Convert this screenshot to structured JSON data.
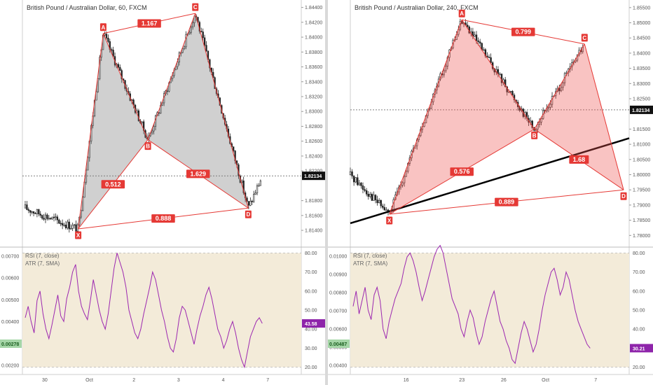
{
  "chart_data": [
    {
      "type": "candlestick",
      "title": "British Pound / Australian Dollar, 60, FXCM",
      "price_axis": {
        "ticks": [
          "1.84400",
          "1.84200",
          "1.84000",
          "1.83800",
          "1.83600",
          "1.83400",
          "1.83200",
          "1.83000",
          "1.82800",
          "1.82600",
          "1.82400",
          "1.82200",
          "1.81800",
          "1.81600",
          "1.81400"
        ],
        "range": [
          1.8125,
          1.845
        ],
        "current_price": "1.82134"
      },
      "x_axis": {
        "ticks": [
          "30",
          "Oct",
          "2",
          "3",
          "4",
          "7"
        ]
      },
      "pattern": {
        "points": [
          {
            "label": "X",
            "x": 0.2,
            "y": 1.8142
          },
          {
            "label": "A",
            "x": 0.29,
            "y": 1.8405
          },
          {
            "label": "B",
            "x": 0.45,
            "y": 1.8262
          },
          {
            "label": "C",
            "x": 0.62,
            "y": 1.8432
          },
          {
            "label": "D",
            "x": 0.81,
            "y": 1.817
          }
        ],
        "ratios": [
          "0.512",
          "1.167",
          "1.629",
          "0.888"
        ],
        "color": "#e53935",
        "fill": "rgba(120,120,120,0.35)"
      },
      "indicators": {
        "rsi_label": "RSI (7, close)",
        "atr_label": "ATR (7, SMA)",
        "left_ticks": [
          "0.00700",
          "0.00600",
          "0.00500",
          "0.00400",
          "0.00300",
          "0.00200"
        ],
        "right_ticks": [
          "80.00",
          "70.00",
          "60.00",
          "50.00",
          "40.00",
          "30.00",
          "20.00"
        ],
        "rsi_value": "43.58",
        "atr_value": "0.00278",
        "rsi_series": [
          46,
          52,
          44,
          38,
          55,
          60,
          48,
          40,
          35,
          42,
          50,
          58,
          47,
          44,
          56,
          62,
          70,
          74,
          60,
          52,
          48,
          45,
          55,
          66,
          58,
          50,
          44,
          40,
          48,
          60,
          72,
          80,
          75,
          70,
          62,
          50,
          44,
          38,
          35,
          40,
          48,
          55,
          62,
          70,
          66,
          58,
          50,
          44,
          36,
          30,
          28,
          35,
          46,
          52,
          50,
          44,
          38,
          32,
          40,
          47,
          52,
          58,
          62,
          56,
          48,
          40,
          36,
          30,
          34,
          40,
          44,
          38,
          30,
          24,
          20,
          28,
          36,
          40,
          44,
          46,
          43
        ]
      }
    },
    {
      "type": "candlestick",
      "title": "British Pound / Australian Dollar, 240, FXCM",
      "price_axis": {
        "ticks": [
          "1.85500",
          "1.85000",
          "1.84500",
          "1.84000",
          "1.83500",
          "1.83000",
          "1.82500",
          "1.81500",
          "1.81000",
          "1.80500",
          "1.80000",
          "1.79500",
          "1.79000",
          "1.78500",
          "1.78000"
        ],
        "range": [
          1.778,
          1.8575
        ],
        "current_price": "1.82134"
      },
      "x_axis": {
        "ticks": [
          "16",
          "23",
          "26",
          "Oct",
          "7"
        ]
      },
      "pattern": {
        "points": [
          {
            "label": "X",
            "x": 0.14,
            "y": 1.787
          },
          {
            "label": "A",
            "x": 0.4,
            "y": 1.851
          },
          {
            "label": "B",
            "x": 0.66,
            "y": 1.815
          },
          {
            "label": "C",
            "x": 0.84,
            "y": 1.843
          },
          {
            "label": "D",
            "x": 0.98,
            "y": 1.795
          }
        ],
        "ratios": [
          "0.576",
          "0.799",
          "1.68",
          "0.889"
        ],
        "color": "#e53935",
        "fill": "rgba(239,83,80,0.35)"
      },
      "trendline": {
        "from": [
          0.0,
          1.784
        ],
        "to": [
          1.0,
          1.812
        ]
      },
      "indicators": {
        "rsi_label": "RSI (7, close)",
        "atr_label": "ATR (7, SMA)",
        "left_ticks": [
          "0.01000",
          "0.00900",
          "0.00800",
          "0.00700",
          "0.00600",
          "0.00500",
          "0.00400"
        ],
        "right_ticks": [
          "80.00",
          "70.00",
          "60.00",
          "50.00",
          "40.00",
          "30.00",
          "20.00"
        ],
        "rsi_value": "30.21",
        "atr_value": "0.00487",
        "rsi_series": [
          52,
          60,
          48,
          55,
          62,
          50,
          45,
          58,
          62,
          55,
          40,
          35,
          44,
          50,
          56,
          60,
          64,
          72,
          78,
          80,
          76,
          70,
          62,
          55,
          60,
          66,
          72,
          78,
          82,
          84,
          80,
          72,
          64,
          56,
          52,
          48,
          40,
          36,
          44,
          50,
          46,
          38,
          32,
          36,
          44,
          50,
          56,
          60,
          52,
          44,
          40,
          34,
          30,
          24,
          22,
          30,
          38,
          44,
          40,
          34,
          28,
          32,
          40,
          50,
          58,
          64,
          70,
          72,
          66,
          58,
          62,
          70,
          66,
          58,
          50,
          44,
          40,
          36,
          32,
          30
        ]
      }
    }
  ]
}
